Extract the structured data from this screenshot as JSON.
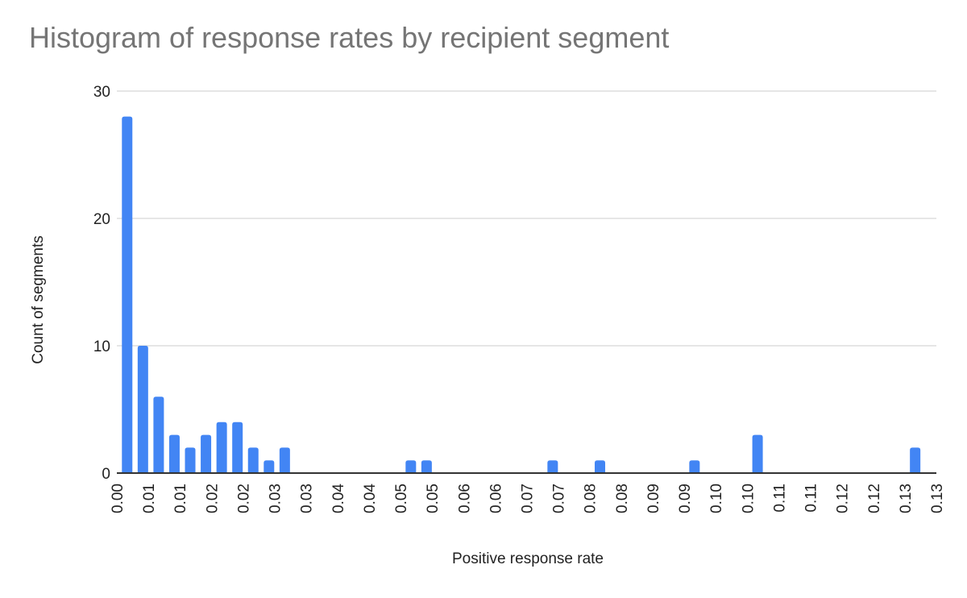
{
  "chart_data": {
    "type": "bar",
    "title": "Histogram of response rates by recipient segment",
    "xlabel": "Positive response rate",
    "ylabel": "Count of segments",
    "ylim": [
      0,
      30
    ],
    "xlim": [
      0,
      0.13
    ],
    "yticks": [
      "0",
      "10",
      "20",
      "30"
    ],
    "xticks": [
      "0.00",
      "0.01",
      "0.01",
      "0.02",
      "0.02",
      "0.03",
      "0.03",
      "0.04",
      "0.04",
      "0.05",
      "0.05",
      "0.06",
      "0.06",
      "0.07",
      "0.07",
      "0.08",
      "0.08",
      "0.09",
      "0.09",
      "0.10",
      "0.10",
      "0.11",
      "0.11",
      "0.12",
      "0.12",
      "0.13",
      "0.13"
    ],
    "bin_width": 0.0025,
    "grid": true,
    "color": "#4285f4",
    "bins": [
      {
        "x": 0.0,
        "count": 28
      },
      {
        "x": 0.0025,
        "count": 10
      },
      {
        "x": 0.005,
        "count": 6
      },
      {
        "x": 0.0075,
        "count": 3
      },
      {
        "x": 0.01,
        "count": 2
      },
      {
        "x": 0.0125,
        "count": 3
      },
      {
        "x": 0.015,
        "count": 4
      },
      {
        "x": 0.0175,
        "count": 4
      },
      {
        "x": 0.02,
        "count": 2
      },
      {
        "x": 0.0225,
        "count": 1
      },
      {
        "x": 0.025,
        "count": 2
      },
      {
        "x": 0.045,
        "count": 1
      },
      {
        "x": 0.0475,
        "count": 1
      },
      {
        "x": 0.0675,
        "count": 1
      },
      {
        "x": 0.075,
        "count": 1
      },
      {
        "x": 0.09,
        "count": 1
      },
      {
        "x": 0.1,
        "count": 3
      },
      {
        "x": 0.125,
        "count": 2
      }
    ]
  }
}
